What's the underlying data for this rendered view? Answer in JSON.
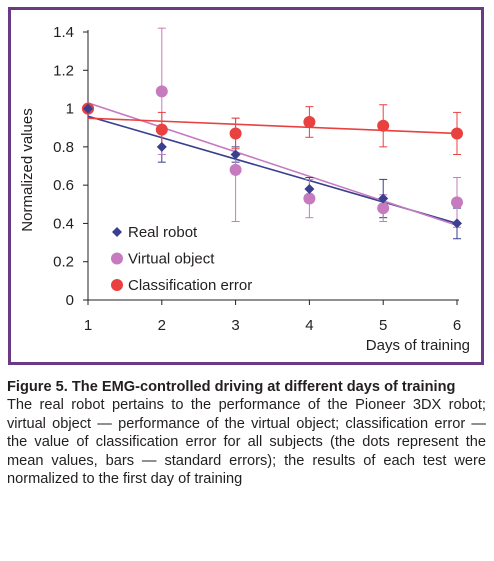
{
  "figure_label": "Figure 5.",
  "figure_title": "The EMG-controlled driving at different days of training",
  "caption_text": "The real robot pertains to the performance of the Pioneer 3DX robot; virtual object — performance of the virtual object; classification error — the value of classification error for all subjects (the dots represent the mean values, bars — standard errors); the results of each test were normalized to the first day of training",
  "colors": {
    "frame": "#6b3a86",
    "real_robot": "#3a3f8f",
    "virtual_object": "#c77bbf",
    "classification_error": "#e8413f"
  },
  "chart_data": {
    "type": "scatter",
    "xlabel": "Days of training",
    "ylabel": "Normalized values",
    "x": [
      1,
      2,
      3,
      4,
      5,
      6
    ],
    "x_ticks": [
      "1",
      "2",
      "3",
      "4",
      "5",
      "6"
    ],
    "xlim": [
      1,
      6
    ],
    "ylim": [
      0,
      1.4
    ],
    "y_ticks": [
      "0",
      "0.2",
      "0.4",
      "0.6",
      "0.8",
      "1",
      "1.2",
      "1.4"
    ],
    "y_tick_values": [
      0,
      0.2,
      0.4,
      0.6,
      0.8,
      1,
      1.2,
      1.4
    ],
    "grid": false,
    "legend_position": "bottom-left",
    "series": [
      {
        "name": "Real robot",
        "marker": "diamond",
        "color": "#3a3f8f",
        "values": [
          1.0,
          0.8,
          0.76,
          0.58,
          0.53,
          0.4
        ],
        "errors": [
          0.0,
          0.08,
          0.04,
          0.06,
          0.1,
          0.08
        ],
        "trendline": [
          0.96,
          0.4
        ]
      },
      {
        "name": "Virtual object",
        "marker": "circle",
        "color": "#c77bbf",
        "values": [
          1.0,
          1.09,
          0.68,
          0.53,
          0.48,
          0.51
        ],
        "errors": [
          0.0,
          0.33,
          0.27,
          0.1,
          0.07,
          0.13
        ],
        "trendline": [
          1.03,
          0.39
        ]
      },
      {
        "name": "Classification error",
        "marker": "circle",
        "color": "#e8413f",
        "values": [
          1.0,
          0.89,
          0.87,
          0.93,
          0.91,
          0.87
        ],
        "errors": [
          0.0,
          0.09,
          0.08,
          0.08,
          0.11,
          0.11
        ],
        "trendline": [
          0.95,
          0.87
        ]
      }
    ]
  }
}
